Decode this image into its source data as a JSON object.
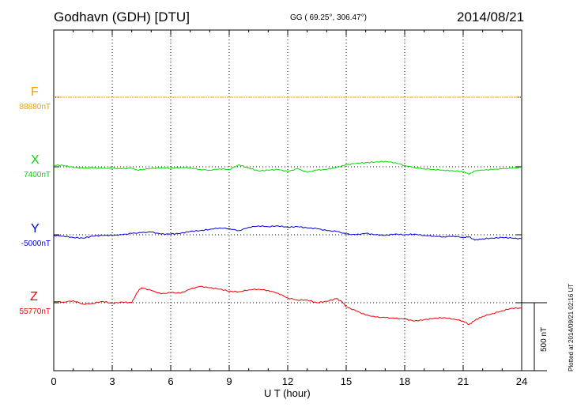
{
  "header": {
    "station": "Godhavn (GDH)  [DTU]",
    "coords": "GG ( 69.25°, 306.47°)",
    "date": "2014/08/21"
  },
  "footer": {
    "plotted": "Plotted at 2014/09/21 02:16 UT",
    "scale_label": "500 nT"
  },
  "chart_data": {
    "type": "line",
    "xlabel": "U T (hour)",
    "xlim": [
      0,
      24
    ],
    "xticks": [
      "0",
      "3",
      "6",
      "9",
      "12",
      "15",
      "18",
      "21",
      "24"
    ],
    "scale_bar_nT": 500,
    "grid": true,
    "colors": {
      "F": "#f0a000",
      "X": "#00dd00",
      "Y": "#0000dd",
      "Z": "#ee0000"
    },
    "series": [
      {
        "name": "F",
        "baseline": "88880nT",
        "baseline_nT": 88880,
        "x": [
          0,
          24
        ],
        "y": [
          0,
          0
        ]
      },
      {
        "name": "X",
        "baseline": "7400nT",
        "baseline_nT": 7400,
        "x": [
          0,
          0.5,
          1,
          1.5,
          2,
          2.5,
          3,
          3.5,
          4,
          4.3,
          4.6,
          5,
          5.5,
          6,
          6.5,
          7,
          7.5,
          8,
          8.5,
          9,
          9.5,
          10,
          10.5,
          11,
          11.5,
          12,
          12.5,
          13,
          13.5,
          14,
          14.5,
          15,
          15.5,
          16,
          16.5,
          17,
          17.5,
          18,
          18.5,
          19,
          19.5,
          20,
          20.5,
          21,
          21.3,
          21.6,
          22,
          22.5,
          23,
          23.5,
          24
        ],
        "y": [
          12,
          10,
          -5,
          -10,
          -8,
          -12,
          -10,
          -15,
          -10,
          -25,
          -18,
          -12,
          -8,
          -10,
          -5,
          -8,
          -20,
          -25,
          -15,
          -20,
          15,
          -10,
          -30,
          -25,
          -20,
          -35,
          -15,
          -40,
          -25,
          -20,
          -5,
          15,
          25,
          30,
          35,
          40,
          30,
          10,
          -5,
          -15,
          -20,
          -25,
          -30,
          -35,
          -55,
          -30,
          -25,
          -20,
          -15,
          -10,
          -5
        ]
      },
      {
        "name": "Y",
        "baseline": "-5000nT",
        "baseline_nT": -5000,
        "x": [
          0,
          0.5,
          1,
          1.5,
          2,
          2.5,
          3,
          3.5,
          4,
          4.5,
          5,
          5.5,
          6,
          6.5,
          7,
          7.5,
          8,
          8.5,
          9,
          9.5,
          10,
          10.5,
          11,
          11.5,
          12,
          12.5,
          13,
          13.5,
          14,
          14.5,
          15,
          15.5,
          16,
          16.5,
          17,
          17.5,
          18,
          18.5,
          19,
          19.5,
          20,
          20.5,
          21,
          21.3,
          21.6,
          22,
          22.5,
          23,
          23.5,
          24
        ],
        "y": [
          -5,
          -10,
          -20,
          -25,
          -10,
          -5,
          -5,
          0,
          10,
          15,
          20,
          5,
          5,
          10,
          25,
          30,
          40,
          50,
          45,
          30,
          55,
          65,
          60,
          65,
          55,
          60,
          50,
          45,
          30,
          25,
          5,
          0,
          10,
          0,
          -5,
          5,
          0,
          5,
          -5,
          -10,
          -15,
          -10,
          -20,
          -15,
          -40,
          -30,
          -25,
          -20,
          -25,
          -30
        ]
      },
      {
        "name": "Z",
        "baseline": "55770nT",
        "baseline_nT": 55770,
        "x": [
          0,
          0.5,
          1,
          1.5,
          2,
          2.5,
          3,
          3.5,
          4,
          4.3,
          4.5,
          5,
          5.5,
          6,
          6.5,
          7,
          7.5,
          8,
          8.5,
          9,
          9.5,
          10,
          10.5,
          11,
          11.5,
          12,
          12.5,
          13,
          13.5,
          14,
          14.5,
          14.8,
          15,
          15.5,
          16,
          16.5,
          17,
          17.5,
          18,
          18.5,
          19,
          19.5,
          20,
          20.5,
          21,
          21.3,
          21.6,
          22,
          22.5,
          23,
          23.5,
          24
        ],
        "y": [
          10,
          5,
          15,
          -10,
          -5,
          10,
          -5,
          5,
          0,
          80,
          110,
          90,
          65,
          75,
          70,
          100,
          120,
          110,
          100,
          85,
          80,
          95,
          100,
          90,
          70,
          35,
          20,
          20,
          0,
          10,
          30,
          5,
          -30,
          -60,
          -90,
          -105,
          -110,
          -115,
          -120,
          -135,
          -125,
          -115,
          -110,
          -120,
          -135,
          -160,
          -130,
          -100,
          -80,
          -60,
          -40,
          -40
        ]
      }
    ]
  }
}
